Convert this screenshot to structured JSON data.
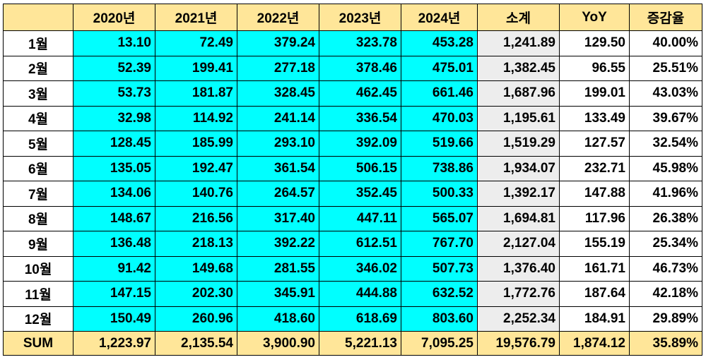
{
  "table": {
    "header": [
      "2020년",
      "2021년",
      "2022년",
      "2023년",
      "2024년",
      "소계",
      "YoY",
      "증감율"
    ],
    "rows": [
      {
        "label": "1월",
        "cells": [
          "13.10",
          "72.49",
          "379.24",
          "323.78",
          "453.28",
          "1,241.89",
          "129.50",
          "40.00%"
        ]
      },
      {
        "label": "2월",
        "cells": [
          "52.39",
          "199.41",
          "277.18",
          "378.46",
          "475.01",
          "1,382.45",
          "96.55",
          "25.51%"
        ]
      },
      {
        "label": "3월",
        "cells": [
          "53.73",
          "181.87",
          "328.45",
          "462.45",
          "661.46",
          "1,687.96",
          "199.01",
          "43.03%"
        ]
      },
      {
        "label": "4월",
        "cells": [
          "32.98",
          "114.92",
          "241.14",
          "336.54",
          "470.03",
          "1,195.61",
          "133.49",
          "39.67%"
        ]
      },
      {
        "label": "5월",
        "cells": [
          "128.45",
          "185.99",
          "293.10",
          "392.09",
          "519.66",
          "1,519.29",
          "127.57",
          "32.54%"
        ]
      },
      {
        "label": "6월",
        "cells": [
          "135.05",
          "192.47",
          "361.54",
          "506.15",
          "738.86",
          "1,934.07",
          "232.71",
          "45.98%"
        ]
      },
      {
        "label": "7월",
        "cells": [
          "134.06",
          "140.76",
          "264.57",
          "352.45",
          "500.33",
          "1,392.17",
          "147.88",
          "41.96%"
        ]
      },
      {
        "label": "8월",
        "cells": [
          "148.67",
          "216.56",
          "317.40",
          "447.11",
          "565.07",
          "1,694.81",
          "117.96",
          "26.38%"
        ]
      },
      {
        "label": "9월",
        "cells": [
          "136.48",
          "218.13",
          "392.22",
          "612.51",
          "767.70",
          "2,127.04",
          "155.19",
          "25.34%"
        ]
      },
      {
        "label": "10월",
        "cells": [
          "91.42",
          "149.68",
          "281.55",
          "346.02",
          "507.73",
          "1,376.40",
          "161.71",
          "46.73%"
        ]
      },
      {
        "label": "11월",
        "cells": [
          "147.15",
          "202.30",
          "345.91",
          "444.88",
          "632.52",
          "1,772.76",
          "187.64",
          "42.18%"
        ]
      },
      {
        "label": "12월",
        "cells": [
          "150.49",
          "260.96",
          "418.60",
          "618.69",
          "803.60",
          "2,252.34",
          "184.91",
          "29.89%"
        ]
      }
    ],
    "sum": {
      "label": "SUM",
      "cells": [
        "1,223.97",
        "2,135.54",
        "3,900.90",
        "5,221.13",
        "7,095.25",
        "19,576.79",
        "1,874.12",
        "35.89%"
      ]
    }
  }
}
